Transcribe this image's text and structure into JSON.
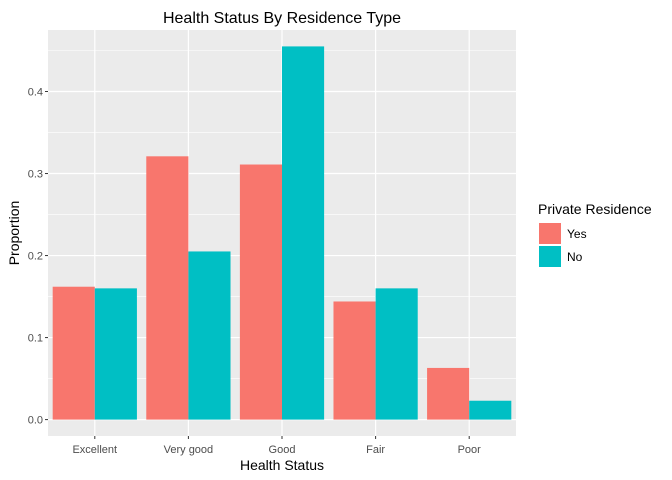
{
  "chart_data": {
    "type": "bar",
    "title": "Health Status By Residence Type",
    "xlabel": "Health Status",
    "ylabel": "Proportion",
    "categories": [
      "Excellent",
      "Very good",
      "Good",
      "Fair",
      "Poor"
    ],
    "series": [
      {
        "name": "Yes",
        "color": "#F8766D",
        "values": [
          0.162,
          0.321,
          0.311,
          0.144,
          0.063
        ]
      },
      {
        "name": "No",
        "color": "#00BFC4",
        "values": [
          0.16,
          0.205,
          0.455,
          0.16,
          0.023
        ]
      }
    ],
    "ylim": [
      -0.02,
      0.475
    ],
    "yticks": [
      0.0,
      0.1,
      0.2,
      0.3,
      0.4
    ],
    "ytick_labels": [
      "0.0",
      "0.1",
      "0.2",
      "0.3",
      "0.4"
    ],
    "grid": true,
    "legend": {
      "title": "Private Residence",
      "position": "right"
    },
    "panel_color": "#EBEBEB",
    "grid_color": "#FFFFFF"
  }
}
